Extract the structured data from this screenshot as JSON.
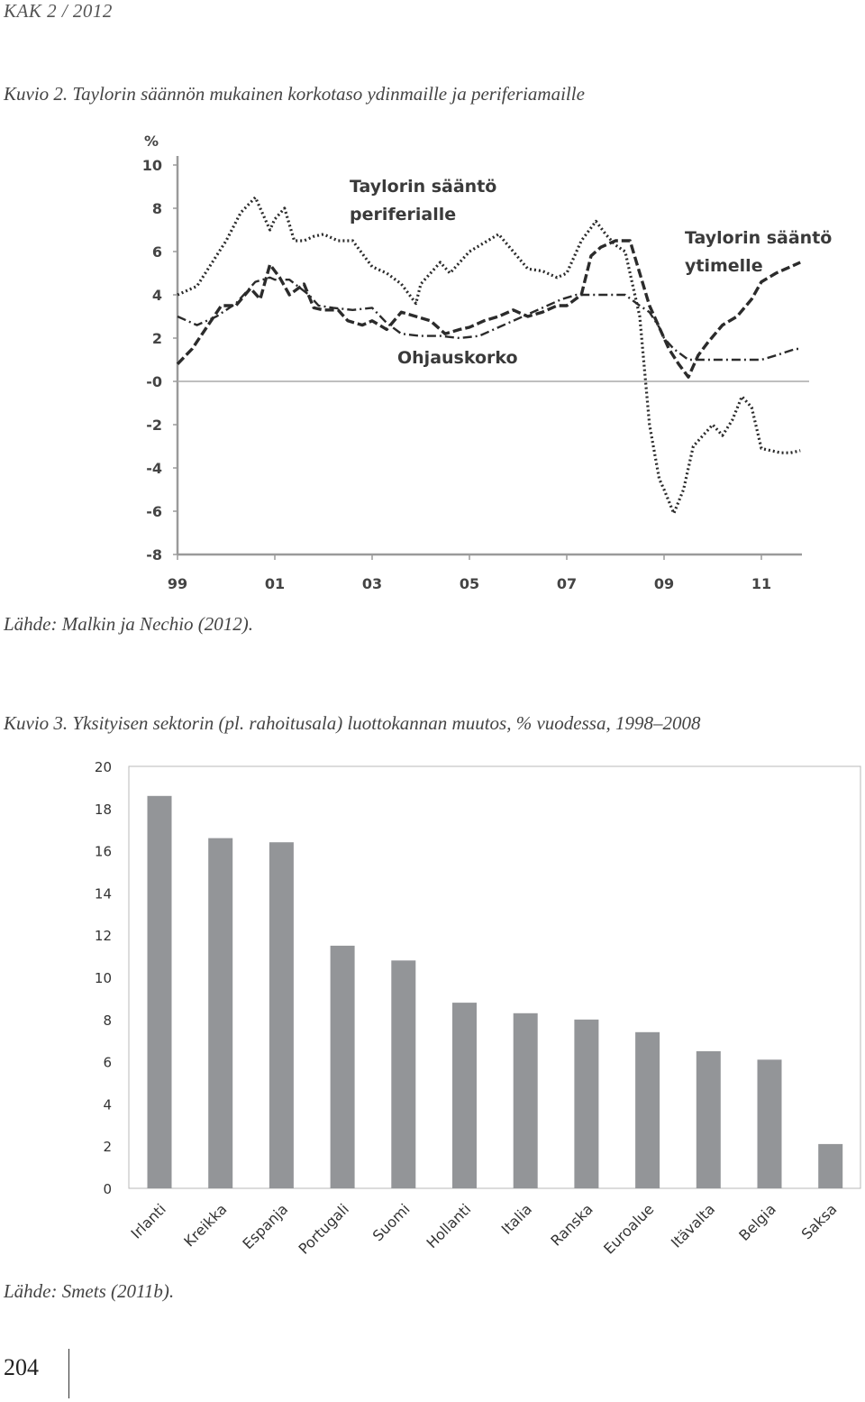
{
  "header": {
    "running_title": "KAK 2 / 2012"
  },
  "figure2": {
    "caption": "Kuvio 2. Taylorin säännön mukainen korkotaso ydinmaille ja periferiamaille",
    "source": "Lähde: Malkin ja Nechio (2012)."
  },
  "figure3": {
    "caption": "Kuvio 3. Yksityisen sektorin (pl. rahoitusala) luottokannan muutos, % vuodessa, 1998–2008",
    "source": "Lähde: Smets (2011b)."
  },
  "footer": {
    "page_number": "204"
  },
  "chart_data": [
    {
      "type": "line",
      "ylabel": "%",
      "ylim": [
        -8,
        10
      ],
      "yticks": [
        "10",
        "8",
        "6",
        "4",
        "2",
        "-0",
        "-2",
        "-4",
        "-6",
        "-8"
      ],
      "xticks": [
        "99",
        "01",
        "03",
        "05",
        "07",
        "09",
        "11"
      ],
      "xlim": [
        1999,
        2012.1
      ],
      "grid": false,
      "annotations": [
        "Taylorin sääntö",
        "periferialle",
        "Taylorin sääntö",
        "ytimelle",
        "Ohjauskorko"
      ],
      "series": [
        {
          "name": "Taylorin sääntö periferialle",
          "style": "dotted",
          "x": [
            1999.0,
            1999.4,
            1999.8,
            2000.0,
            2000.3,
            2000.6,
            2000.9,
            2001.0,
            2001.2,
            2001.4,
            2001.6,
            2001.8,
            2002.0,
            2002.3,
            2002.6,
            2003.0,
            2003.3,
            2003.6,
            2003.9,
            2004.0,
            2004.2,
            2004.4,
            2004.6,
            2004.8,
            2005.0,
            2005.3,
            2005.6,
            2005.9,
            2006.2,
            2006.5,
            2006.8,
            2007.0,
            2007.3,
            2007.6,
            2007.8,
            2008.0,
            2008.2,
            2008.5,
            2008.7,
            2008.9,
            2009.0,
            2009.2,
            2009.4,
            2009.6,
            2009.8,
            2010.0,
            2010.2,
            2010.4,
            2010.6,
            2010.8,
            2011.0,
            2011.2,
            2011.4,
            2011.6,
            2011.8
          ],
          "values": [
            4.0,
            4.4,
            5.8,
            6.5,
            7.8,
            8.5,
            7.0,
            7.5,
            8.0,
            6.5,
            6.5,
            6.7,
            6.8,
            6.5,
            6.5,
            5.3,
            5.0,
            4.5,
            3.6,
            4.5,
            5.0,
            5.5,
            5.0,
            5.5,
            6.0,
            6.4,
            6.8,
            6.0,
            5.2,
            5.1,
            4.8,
            5.0,
            6.5,
            7.4,
            6.8,
            6.3,
            6.0,
            3.0,
            -2.0,
            -4.5,
            -5.0,
            -6.1,
            -5.0,
            -3.0,
            -2.5,
            -2.0,
            -2.5,
            -1.8,
            -0.7,
            -1.2,
            -3.1,
            -3.2,
            -3.3,
            -3.3,
            -3.2
          ]
        },
        {
          "name": "Taylorin sääntö ytimelle",
          "style": "dashed",
          "x": [
            1999.0,
            1999.3,
            1999.6,
            1999.9,
            2000.2,
            2000.5,
            2000.7,
            2000.9,
            2001.1,
            2001.3,
            2001.6,
            2001.8,
            2002.0,
            2002.3,
            2002.5,
            2002.8,
            2003.0,
            2003.3,
            2003.6,
            2003.9,
            2004.2,
            2004.5,
            2004.8,
            2005.0,
            2005.3,
            2005.6,
            2005.9,
            2006.2,
            2006.5,
            2006.8,
            2007.0,
            2007.3,
            2007.5,
            2007.7,
            2008.0,
            2008.3,
            2008.5,
            2008.7,
            2008.9,
            2009.1,
            2009.3,
            2009.5,
            2009.7,
            2009.9,
            2010.2,
            2010.5,
            2010.8,
            2011.0,
            2011.3,
            2011.5,
            2011.8
          ],
          "values": [
            0.8,
            1.5,
            2.5,
            3.5,
            3.5,
            4.3,
            3.8,
            5.4,
            4.8,
            4.0,
            4.5,
            3.4,
            3.3,
            3.3,
            2.8,
            2.6,
            2.8,
            2.4,
            3.2,
            3.0,
            2.8,
            2.2,
            2.4,
            2.5,
            2.8,
            3.0,
            3.3,
            3.0,
            3.2,
            3.5,
            3.5,
            4.0,
            5.8,
            6.2,
            6.5,
            6.5,
            5.0,
            3.5,
            2.5,
            1.5,
            0.8,
            0.2,
            1.2,
            1.8,
            2.6,
            3.0,
            3.8,
            4.6,
            5.0,
            5.2,
            5.5
          ]
        },
        {
          "name": "Ohjauskorko",
          "style": "dash-dot",
          "x": [
            1999.0,
            1999.4,
            1999.8,
            2000.2,
            2000.6,
            2000.9,
            2001.0,
            2001.3,
            2001.7,
            2001.9,
            2002.2,
            2002.6,
            2003.0,
            2003.3,
            2003.6,
            2004.0,
            2004.4,
            2004.8,
            2005.2,
            2005.6,
            2005.9,
            2006.2,
            2006.6,
            2006.9,
            2007.2,
            2007.5,
            2007.8,
            2008.2,
            2008.5,
            2008.7,
            2008.9,
            2009.0,
            2009.2,
            2009.5,
            2010.0,
            2010.5,
            2011.0,
            2011.3,
            2011.7,
            2011.8
          ],
          "values": [
            3.0,
            2.6,
            3.0,
            3.6,
            4.6,
            4.8,
            4.7,
            4.7,
            4.0,
            3.5,
            3.4,
            3.3,
            3.4,
            2.7,
            2.2,
            2.1,
            2.1,
            2.0,
            2.1,
            2.5,
            2.8,
            3.1,
            3.5,
            3.8,
            4.0,
            4.0,
            4.0,
            4.0,
            3.5,
            3.2,
            2.5,
            2.0,
            1.5,
            1.0,
            1.0,
            1.0,
            1.0,
            1.2,
            1.5,
            1.5
          ]
        }
      ]
    },
    {
      "type": "bar",
      "categories": [
        "Irlanti",
        "Kreikka",
        "Espanja",
        "Portugali",
        "Suomi",
        "Hollanti",
        "Italia",
        "Ranska",
        "Euroalue",
        "Itävalta",
        "Belgia",
        "Saksa"
      ],
      "values": [
        18.6,
        16.6,
        16.4,
        11.5,
        10.8,
        8.8,
        8.3,
        8.0,
        7.4,
        6.5,
        6.1,
        2.1
      ],
      "yticks": [
        "20",
        "18",
        "16",
        "14",
        "12",
        "10",
        "8",
        "6",
        "4",
        "2",
        "0"
      ],
      "ylim": [
        0,
        20
      ],
      "bar_color": "#939598",
      "grid": false
    }
  ]
}
